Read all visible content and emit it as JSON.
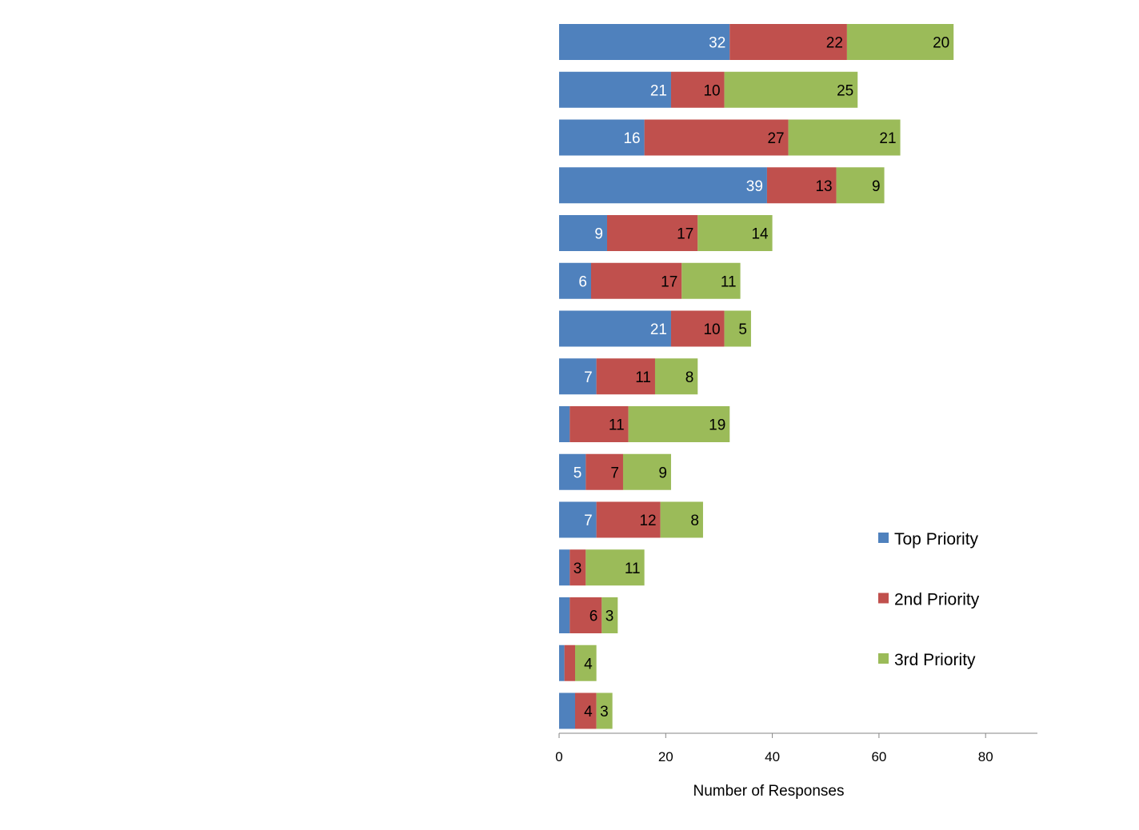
{
  "chart_data": {
    "type": "bar",
    "orientation": "horizontal",
    "stacked": true,
    "title": "",
    "xlabel": "Number of Responses",
    "ylabel": "",
    "xlim": [
      0,
      90
    ],
    "xticks": [
      0,
      20,
      40,
      60,
      80
    ],
    "grid": false,
    "legend_position": "right",
    "categories": [
      "",
      "",
      "",
      "",
      "",
      "",
      "",
      "",
      "",
      "",
      "",
      "",
      "",
      "",
      ""
    ],
    "series": [
      {
        "name": "Top Priority",
        "color": "#4F81BD",
        "label_color": "#ffffff",
        "values": [
          32,
          21,
          16,
          39,
          9,
          6,
          21,
          7,
          2,
          5,
          7,
          2,
          2,
          1,
          3
        ],
        "labels": [
          "32",
          "21",
          "16",
          "39",
          "9",
          "6",
          "21",
          "7",
          "",
          "5",
          "7",
          "",
          "",
          "",
          ""
        ]
      },
      {
        "name": "2nd Priority",
        "color": "#C0504D",
        "label_color": "#000000",
        "values": [
          22,
          10,
          27,
          13,
          17,
          17,
          10,
          11,
          11,
          7,
          12,
          3,
          6,
          2,
          4
        ],
        "labels": [
          "22",
          "10",
          "27",
          "13",
          "17",
          "17",
          "10",
          "11",
          "11",
          "7",
          "12",
          "3",
          "6",
          "",
          "4"
        ]
      },
      {
        "name": "3rd Priority",
        "color": "#9BBB59",
        "label_color": "#000000",
        "values": [
          20,
          25,
          21,
          9,
          14,
          11,
          5,
          8,
          19,
          9,
          8,
          11,
          3,
          4,
          3
        ],
        "labels": [
          "20",
          "25",
          "21",
          "9",
          "14",
          "11",
          "5",
          "8",
          "19",
          "9",
          "8",
          "11",
          "3",
          "4",
          "3"
        ]
      }
    ]
  }
}
